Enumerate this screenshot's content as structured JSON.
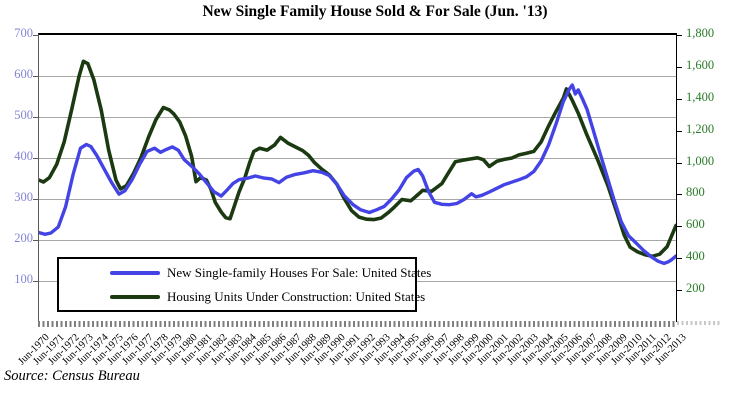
{
  "title": "New Single Family House Sold & For Sale (Jun. '13)",
  "source": "Source: Census Bureau",
  "colors": {
    "for_sale_line": "#4343e6",
    "under_construction_line": "#1c3a12",
    "left_axis_labels": "#8585d8",
    "right_axis_labels": "#2a7a28",
    "gridline": "#a8a8a8",
    "tick_band": "#7f7f7f"
  },
  "legend": {
    "items": [
      {
        "label": "New Single-family Houses For Sale: United States",
        "series": "for_sale",
        "color": "#4343e6"
      },
      {
        "label": "Housing Units Under Construction: United States",
        "series": "under_construction",
        "color": "#1c3a12"
      }
    ]
  },
  "chart_data": {
    "type": "line",
    "title": "New Single Family House Sold & For Sale (Jun. '13)",
    "grid": "horizontal gridlines at left-axis ticks",
    "legend_position": "inside lower-left, boxed",
    "x_axis": {
      "start": 1970.5,
      "end": 2013.5,
      "labels": [
        "Jun-1970",
        "Jun-1971",
        "Jun-1972",
        "Jun-1973",
        "Jun-1974",
        "Jun-1975",
        "Jun-1976",
        "Jun-1977",
        "Jun-1978",
        "Jun-1979",
        "Jun-1980",
        "Jun-1981",
        "Jun-1982",
        "Jun-1983",
        "Jun-1984",
        "Jun-1985",
        "Jun-1986",
        "Jun-1987",
        "Jun-1988",
        "Jun-1989",
        "Jun-1990",
        "Jun-1991",
        "Jun-1992",
        "Jun-1993",
        "Jun-1994",
        "Jun-1995",
        "Jun-1996",
        "Jun-1997",
        "Jun-1998",
        "Jun-1999",
        "Jun-2000",
        "Jun-2001",
        "Jun-2002",
        "Jun-2003",
        "Jun-2004",
        "Jun-2005",
        "Jun-2006",
        "Jun-2007",
        "Jun-2008",
        "Jun-2009",
        "Jun-2010",
        "Jun-2011",
        "Jun-2012",
        "Jun-2013"
      ]
    },
    "left_axis": {
      "min": 0,
      "max": 700,
      "tick_step": 100,
      "ticks": [
        {
          "value": 700,
          "label": "700"
        },
        {
          "value": 600,
          "label": "600"
        },
        {
          "value": 500,
          "label": "500"
        },
        {
          "value": 400,
          "label": "400"
        },
        {
          "value": 300,
          "label": "300"
        },
        {
          "value": 200,
          "label": "200"
        },
        {
          "value": 100,
          "label": "100"
        }
      ]
    },
    "right_axis": {
      "min": 0,
      "max": 1800,
      "tick_step": 200,
      "ticks": [
        {
          "value": 1800,
          "label": "1,800"
        },
        {
          "value": 1600,
          "label": "1,600"
        },
        {
          "value": 1400,
          "label": "1,400"
        },
        {
          "value": 1200,
          "label": "1,200"
        },
        {
          "value": 1000,
          "label": "1,000"
        },
        {
          "value": 800,
          "label": "800"
        },
        {
          "value": 600,
          "label": "600"
        },
        {
          "value": 400,
          "label": "400"
        },
        {
          "value": 200,
          "label": "200"
        }
      ]
    },
    "series": [
      {
        "name": "Housing Units Under Construction: United States",
        "key": "under_construction",
        "axis": "right",
        "color": "#1c3a12",
        "stroke_width": 3.6,
        "points": [
          [
            1970.5,
            890
          ],
          [
            1970.8,
            878
          ],
          [
            1971.2,
            905
          ],
          [
            1971.7,
            990
          ],
          [
            1972.2,
            1130
          ],
          [
            1972.7,
            1330
          ],
          [
            1973.2,
            1540
          ],
          [
            1973.5,
            1635
          ],
          [
            1973.8,
            1620
          ],
          [
            1974.2,
            1520
          ],
          [
            1974.7,
            1330
          ],
          [
            1975.2,
            1080
          ],
          [
            1975.7,
            890
          ],
          [
            1976.0,
            835
          ],
          [
            1976.4,
            855
          ],
          [
            1976.9,
            935
          ],
          [
            1977.4,
            1035
          ],
          [
            1977.9,
            1160
          ],
          [
            1978.4,
            1270
          ],
          [
            1978.9,
            1345
          ],
          [
            1979.3,
            1330
          ],
          [
            1979.6,
            1305
          ],
          [
            1980.0,
            1255
          ],
          [
            1980.4,
            1165
          ],
          [
            1980.8,
            1040
          ],
          [
            1981.1,
            880
          ],
          [
            1981.4,
            905
          ],
          [
            1981.8,
            890
          ],
          [
            1982.1,
            835
          ],
          [
            1982.4,
            750
          ],
          [
            1982.8,
            690
          ],
          [
            1983.1,
            655
          ],
          [
            1983.4,
            648
          ],
          [
            1983.7,
            730
          ],
          [
            1984.0,
            815
          ],
          [
            1984.4,
            905
          ],
          [
            1984.7,
            995
          ],
          [
            1985.0,
            1070
          ],
          [
            1985.4,
            1090
          ],
          [
            1985.9,
            1078
          ],
          [
            1986.4,
            1110
          ],
          [
            1986.8,
            1158
          ],
          [
            1987.3,
            1122
          ],
          [
            1987.8,
            1098
          ],
          [
            1988.3,
            1075
          ],
          [
            1988.7,
            1045
          ],
          [
            1989.1,
            1000
          ],
          [
            1989.6,
            958
          ],
          [
            1990.1,
            922
          ],
          [
            1990.6,
            865
          ],
          [
            1991.1,
            775
          ],
          [
            1991.6,
            698
          ],
          [
            1992.1,
            658
          ],
          [
            1992.6,
            645
          ],
          [
            1993.1,
            642
          ],
          [
            1993.6,
            652
          ],
          [
            1994.1,
            688
          ],
          [
            1994.5,
            722
          ],
          [
            1995.0,
            768
          ],
          [
            1995.6,
            760
          ],
          [
            1996.1,
            800
          ],
          [
            1996.4,
            826
          ],
          [
            1997.0,
            820
          ],
          [
            1997.7,
            868
          ],
          [
            1998.1,
            930
          ],
          [
            1998.6,
            1005
          ],
          [
            1999.1,
            1015
          ],
          [
            1999.6,
            1022
          ],
          [
            2000.1,
            1030
          ],
          [
            2000.5,
            1018
          ],
          [
            2000.9,
            975
          ],
          [
            2001.4,
            1008
          ],
          [
            2001.9,
            1020
          ],
          [
            2002.4,
            1028
          ],
          [
            2002.9,
            1048
          ],
          [
            2003.4,
            1058
          ],
          [
            2003.9,
            1070
          ],
          [
            2004.4,
            1130
          ],
          [
            2004.9,
            1230
          ],
          [
            2005.4,
            1320
          ],
          [
            2005.9,
            1405
          ],
          [
            2006.1,
            1462
          ],
          [
            2006.5,
            1390
          ],
          [
            2006.9,
            1310
          ],
          [
            2007.5,
            1170
          ],
          [
            2008.2,
            1020
          ],
          [
            2008.9,
            855
          ],
          [
            2009.5,
            690
          ],
          [
            2010.0,
            545
          ],
          [
            2010.4,
            470
          ],
          [
            2010.9,
            440
          ],
          [
            2011.4,
            422
          ],
          [
            2011.9,
            412
          ],
          [
            2012.4,
            425
          ],
          [
            2012.9,
            472
          ],
          [
            2013.2,
            540
          ],
          [
            2013.5,
            605
          ]
        ]
      },
      {
        "name": "New Single-family Houses For Sale: United States",
        "key": "for_sale",
        "axis": "left",
        "color": "#4343e6",
        "stroke_width": 3.4,
        "points": [
          [
            1970.5,
            218
          ],
          [
            1970.9,
            214
          ],
          [
            1971.3,
            217
          ],
          [
            1971.8,
            232
          ],
          [
            1972.3,
            282
          ],
          [
            1972.8,
            360
          ],
          [
            1973.3,
            424
          ],
          [
            1973.7,
            433
          ],
          [
            1974.0,
            428
          ],
          [
            1974.4,
            406
          ],
          [
            1974.9,
            373
          ],
          [
            1975.4,
            340
          ],
          [
            1975.9,
            312
          ],
          [
            1976.3,
            320
          ],
          [
            1976.8,
            348
          ],
          [
            1977.3,
            385
          ],
          [
            1977.8,
            416
          ],
          [
            1978.3,
            424
          ],
          [
            1978.7,
            414
          ],
          [
            1979.1,
            421
          ],
          [
            1979.5,
            427
          ],
          [
            1979.9,
            419
          ],
          [
            1980.3,
            396
          ],
          [
            1980.8,
            380
          ],
          [
            1981.3,
            362
          ],
          [
            1981.8,
            340
          ],
          [
            1982.3,
            318
          ],
          [
            1982.8,
            307
          ],
          [
            1983.2,
            322
          ],
          [
            1983.6,
            338
          ],
          [
            1984.0,
            347
          ],
          [
            1984.6,
            351
          ],
          [
            1985.1,
            356
          ],
          [
            1985.7,
            351
          ],
          [
            1986.2,
            349
          ],
          [
            1986.7,
            340
          ],
          [
            1987.2,
            353
          ],
          [
            1987.8,
            360
          ],
          [
            1988.4,
            364
          ],
          [
            1989.0,
            369
          ],
          [
            1989.6,
            365
          ],
          [
            1990.1,
            357
          ],
          [
            1990.6,
            336
          ],
          [
            1991.1,
            308
          ],
          [
            1991.7,
            286
          ],
          [
            1992.2,
            274
          ],
          [
            1992.8,
            267
          ],
          [
            1993.3,
            274
          ],
          [
            1993.8,
            282
          ],
          [
            1994.3,
            300
          ],
          [
            1994.8,
            322
          ],
          [
            1995.3,
            352
          ],
          [
            1995.8,
            368
          ],
          [
            1996.1,
            372
          ],
          [
            1996.4,
            356
          ],
          [
            1996.8,
            318
          ],
          [
            1997.2,
            292
          ],
          [
            1997.7,
            287
          ],
          [
            1998.2,
            286
          ],
          [
            1998.7,
            289
          ],
          [
            1999.2,
            299
          ],
          [
            1999.7,
            313
          ],
          [
            2000.0,
            305
          ],
          [
            2000.4,
            309
          ],
          [
            2000.9,
            317
          ],
          [
            2001.4,
            326
          ],
          [
            2001.9,
            335
          ],
          [
            2002.4,
            341
          ],
          [
            2002.9,
            347
          ],
          [
            2003.4,
            354
          ],
          [
            2003.9,
            367
          ],
          [
            2004.4,
            393
          ],
          [
            2004.9,
            432
          ],
          [
            2005.4,
            483
          ],
          [
            2005.9,
            538
          ],
          [
            2006.3,
            568
          ],
          [
            2006.5,
            578
          ],
          [
            2006.7,
            556
          ],
          [
            2006.9,
            566
          ],
          [
            2007.2,
            543
          ],
          [
            2007.5,
            518
          ],
          [
            2007.9,
            470
          ],
          [
            2008.3,
            420
          ],
          [
            2008.8,
            360
          ],
          [
            2009.3,
            300
          ],
          [
            2009.8,
            245
          ],
          [
            2010.3,
            210
          ],
          [
            2010.8,
            193
          ],
          [
            2011.3,
            175
          ],
          [
            2011.8,
            160
          ],
          [
            2012.3,
            148
          ],
          [
            2012.7,
            143
          ],
          [
            2013.0,
            147
          ],
          [
            2013.2,
            152
          ],
          [
            2013.5,
            161
          ]
        ]
      }
    ]
  }
}
